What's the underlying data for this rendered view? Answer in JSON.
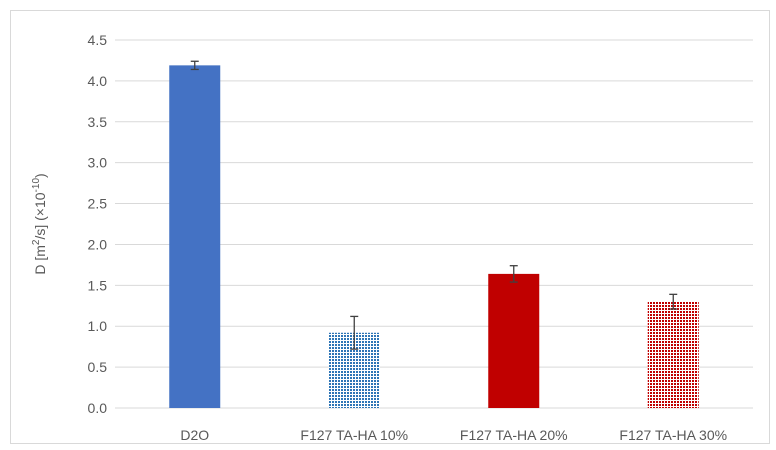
{
  "chart_data": {
    "type": "bar",
    "title": "",
    "xlabel": "",
    "ylabel_parts": [
      "D [m",
      "2",
      "/s] (×10",
      "-10",
      ")"
    ],
    "ylim": [
      0,
      4.5
    ],
    "yticks": [
      "0.0",
      "0.5",
      "1.0",
      "1.5",
      "2.0",
      "2.5",
      "3.0",
      "3.5",
      "4.0",
      "4.5"
    ],
    "grid": true,
    "legend": "none",
    "categories": [
      "D2O",
      "F127 TA-HA 10%",
      "F127 TA-HA 20%",
      "F127 TA-HA 30%"
    ],
    "values": [
      4.19,
      0.92,
      1.64,
      1.3
    ],
    "errors": [
      0.05,
      0.2,
      0.1,
      0.09
    ],
    "fills": [
      "solid",
      "dotted",
      "solid",
      "dotted"
    ],
    "colors": [
      "#4472c4",
      "#2e75b6",
      "#c00000",
      "#c00000"
    ]
  }
}
